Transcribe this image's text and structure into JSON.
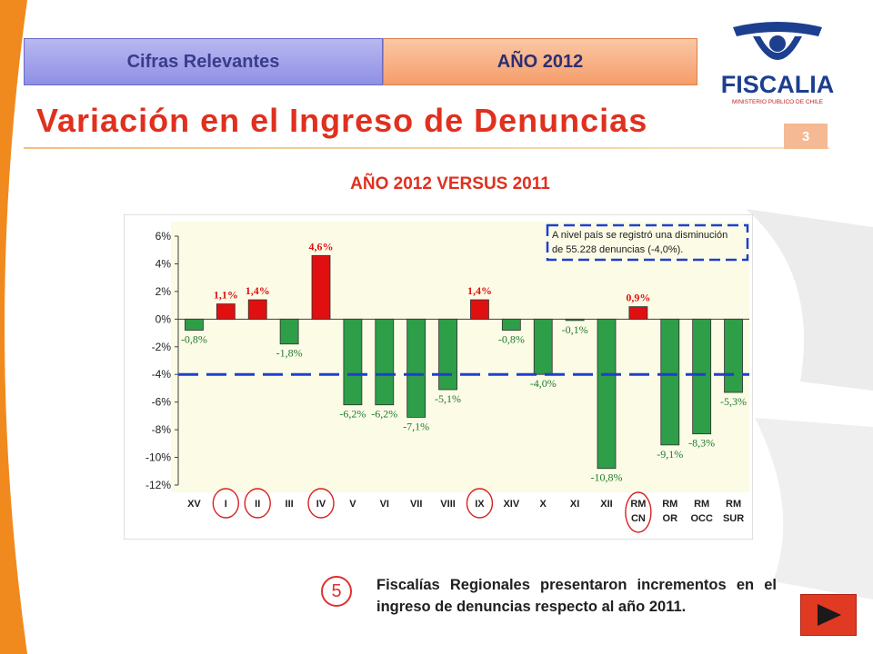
{
  "header": {
    "tab_left": "Cifras Relevantes",
    "tab_right": "AÑO 2012",
    "page_number": "3",
    "logo_name": "FISCALIA",
    "logo_sub": "MINISTERIO PUBLICO DE CHILE"
  },
  "title": "Variación en el Ingreso de Denuncias",
  "subtitle": "AÑO 2012 VERSUS 2011",
  "chart_data": {
    "type": "bar",
    "categories": [
      "XV",
      "I",
      "II",
      "III",
      "IV",
      "V",
      "VI",
      "VII",
      "VIII",
      "IX",
      "XIV",
      "X",
      "XI",
      "XII",
      "RM CN",
      "RM OR",
      "RM OCC",
      "RM SUR"
    ],
    "category_lines": [
      [
        "XV"
      ],
      [
        "I"
      ],
      [
        "II"
      ],
      [
        "III"
      ],
      [
        "IV"
      ],
      [
        "V"
      ],
      [
        "VI"
      ],
      [
        "VII"
      ],
      [
        "VIII"
      ],
      [
        "IX"
      ],
      [
        "XIV"
      ],
      [
        "X"
      ],
      [
        "XI"
      ],
      [
        "XII"
      ],
      [
        "RM",
        "CN"
      ],
      [
        "RM",
        "OR"
      ],
      [
        "RM",
        "OCC"
      ],
      [
        "RM",
        "SUR"
      ]
    ],
    "values": [
      -0.8,
      1.1,
      1.4,
      -1.8,
      4.6,
      -6.2,
      -6.2,
      -7.1,
      -5.1,
      1.4,
      -0.8,
      -4.0,
      -0.1,
      -10.8,
      0.9,
      -9.1,
      -8.3,
      -5.3
    ],
    "value_labels": [
      "-0,8%",
      "1,1%",
      "1,4%",
      "-1,8%",
      "4,6%",
      "-6,2%",
      "-6,2%",
      "-7,1%",
      "-5,1%",
      "1,4%",
      "-0,8%",
      "-4,0%",
      "-0,1%",
      "-10,8%",
      "0,9%",
      "-9,1%",
      "-8,3%",
      "-5,3%"
    ],
    "ylim": [
      -12,
      6
    ],
    "yticks": [
      6,
      4,
      2,
      0,
      -2,
      -4,
      -6,
      -8,
      -10,
      -12
    ],
    "ytick_labels": [
      "6%",
      "4%",
      "2%",
      "0%",
      "-2%",
      "-4%",
      "-6%",
      "-8%",
      "-10%",
      "-12%"
    ],
    "reference_line": -4.0,
    "annotation": [
      "A nivel país se registró una disminución",
      "de 55.228 denuncias (-4,0%)."
    ],
    "highlighted": [
      "I",
      "II",
      "IV",
      "IX",
      "RM CN"
    ],
    "colors": {
      "positive": "#e01010",
      "negative": "#2e9e48",
      "reference": "#1f3fd0",
      "plot_bg": "#fbfbe6",
      "label_red": "#e01010",
      "label_green": "#207a30"
    }
  },
  "footer": {
    "badge": "5",
    "note": "Fiscalías Regionales presentaron incrementos en el ingreso de denuncias respecto al año 2011.",
    "next_icon": "play-next-icon"
  }
}
